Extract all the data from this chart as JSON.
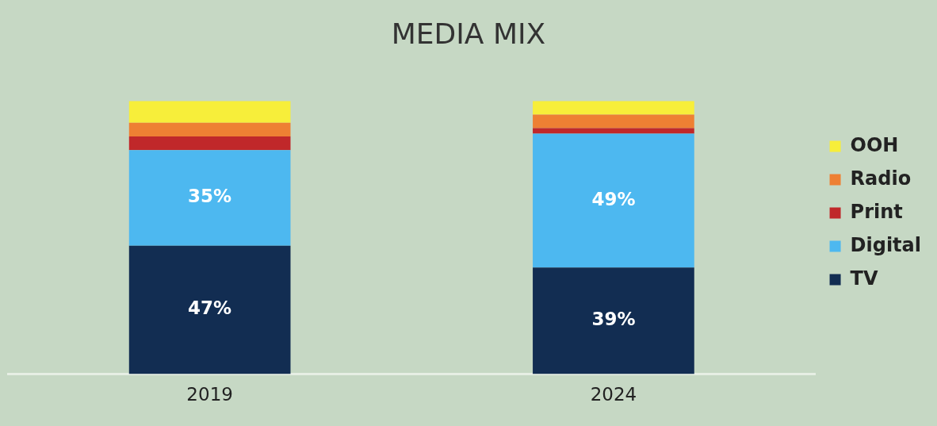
{
  "chart_data": {
    "type": "bar",
    "title": "MEDIA MIX",
    "stacked": true,
    "legend": "right",
    "grid": false,
    "categories": [
      "2019",
      "2024"
    ],
    "series": [
      {
        "name": "TV",
        "color": "#122d52",
        "values": [
          47,
          39
        ],
        "value_labels": [
          "47%",
          "39%"
        ]
      },
      {
        "name": "Digital",
        "color": "#4db8f0",
        "values": [
          35,
          49
        ],
        "value_labels": [
          "35%",
          "49%"
        ]
      },
      {
        "name": "Print",
        "color": "#c0282a",
        "values": [
          5,
          2
        ]
      },
      {
        "name": "Radio",
        "color": "#ee8033",
        "values": [
          5,
          5
        ]
      },
      {
        "name": "OOH",
        "color": "#f7ee3a",
        "values": [
          8,
          5
        ]
      }
    ]
  }
}
